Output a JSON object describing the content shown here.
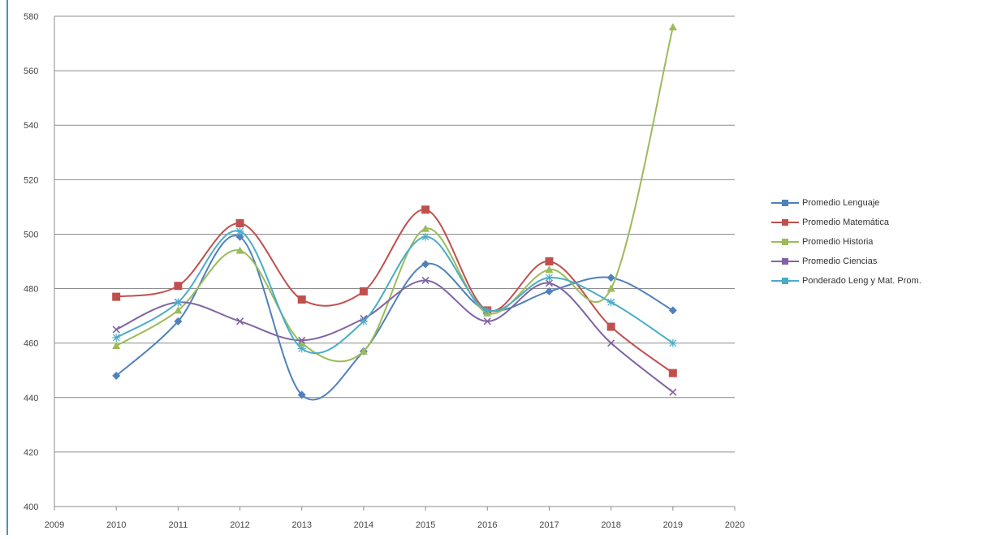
{
  "chart_data": {
    "type": "line",
    "title": "",
    "xlabel": "",
    "ylabel": "",
    "xlim": [
      2009,
      2020
    ],
    "ylim": [
      400,
      580
    ],
    "x_ticks": [
      "2009",
      "2010",
      "2011",
      "2012",
      "2013",
      "2014",
      "2015",
      "2016",
      "2017",
      "2018",
      "2019",
      "2020"
    ],
    "y_ticks": [
      "580",
      "560",
      "540",
      "520",
      "500",
      "480",
      "460",
      "440",
      "420",
      "400"
    ],
    "grid": "horizontal",
    "legend_position": "right",
    "x": [
      2010,
      2011,
      2012,
      2013,
      2014,
      2015,
      2016,
      2017,
      2018,
      2019
    ],
    "series": [
      {
        "name": "Promedio Lenguaje",
        "color": "#4f81bd",
        "marker": "diamond",
        "values": [
          448,
          468,
          499,
          441,
          457,
          489,
          472,
          479,
          484,
          472
        ]
      },
      {
        "name": "Promedio Matemática",
        "color": "#c0504d",
        "marker": "square",
        "values": [
          477,
          481,
          504,
          476,
          479,
          509,
          472,
          490,
          466,
          449
        ]
      },
      {
        "name": "Promedio Historia",
        "color": "#9bbb59",
        "marker": "triangle",
        "values": [
          459,
          472,
          494,
          460,
          457,
          502,
          471,
          487,
          480,
          576
        ]
      },
      {
        "name": "Promedio Ciencias",
        "color": "#8064a2",
        "marker": "x",
        "values": [
          465,
          475,
          468,
          461,
          469,
          483,
          468,
          482,
          460,
          442
        ]
      },
      {
        "name": "Ponderado Leng y Mat. Prom.",
        "color": "#4bacc6",
        "marker": "star",
        "values": [
          462,
          475,
          501,
          458,
          468,
          499,
          472,
          484,
          475,
          460
        ]
      }
    ]
  }
}
